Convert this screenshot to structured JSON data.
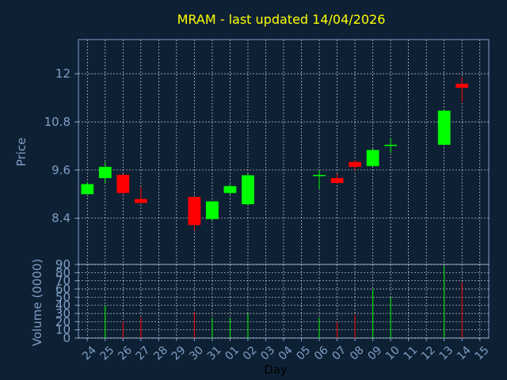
{
  "chart_data": {
    "type": "candlestick",
    "title": "MRAM - last updated 14/04/2026",
    "xlabel": "Day",
    "price_panel": {
      "ylabel": "Price",
      "yticks": [
        "8.4",
        "9.6",
        "10.8",
        "12"
      ],
      "ylim": [
        7.25,
        12.85
      ],
      "grid": true
    },
    "volume_panel": {
      "ylabel": "Volume (0000)",
      "yticks": [
        "0",
        "10",
        "20",
        "30",
        "40",
        "50",
        "60",
        "70",
        "80",
        "90"
      ],
      "ylim": [
        0,
        90
      ],
      "grid": true
    },
    "days": [
      "24",
      "25",
      "26",
      "27",
      "28",
      "29",
      "30",
      "31",
      "01",
      "02",
      "03",
      "04",
      "05",
      "06",
      "07",
      "08",
      "09",
      "10",
      "11",
      "12",
      "13",
      "14",
      "15"
    ],
    "candles": [
      {
        "day": "24",
        "open": 9.0,
        "high": 9.3,
        "low": 9.0,
        "close": 9.25,
        "volume": 0
      },
      {
        "day": "25",
        "open": 9.4,
        "high": 9.8,
        "low": 9.28,
        "close": 9.68,
        "volume": 40
      },
      {
        "day": "26",
        "open": 9.48,
        "high": 9.5,
        "low": 9.0,
        "close": 9.03,
        "volume": 20
      },
      {
        "day": "27",
        "open": 8.88,
        "high": 9.18,
        "low": 8.77,
        "close": 8.78,
        "volume": 25
      },
      {
        "day": "30",
        "open": 8.93,
        "high": 8.93,
        "low": 8.1,
        "close": 8.23,
        "volume": 32
      },
      {
        "day": "31",
        "open": 8.38,
        "high": 8.82,
        "low": 8.35,
        "close": 8.82,
        "volume": 25
      },
      {
        "day": "01",
        "open": 9.03,
        "high": 9.25,
        "low": 8.98,
        "close": 9.2,
        "volume": 25
      },
      {
        "day": "02",
        "open": 8.75,
        "high": 9.5,
        "low": 8.73,
        "close": 9.47,
        "volume": 30
      },
      {
        "day": "06",
        "open": 9.45,
        "high": 9.6,
        "low": 9.13,
        "close": 9.48,
        "volume": 25
      },
      {
        "day": "07",
        "open": 9.4,
        "high": 9.5,
        "low": 9.25,
        "close": 9.28,
        "volume": 20
      },
      {
        "day": "08",
        "open": 9.8,
        "high": 9.85,
        "low": 9.6,
        "close": 9.68,
        "volume": 28
      },
      {
        "day": "09",
        "open": 9.7,
        "high": 10.13,
        "low": 9.7,
        "close": 10.1,
        "volume": 60
      },
      {
        "day": "10",
        "open": 10.2,
        "high": 10.4,
        "low": 10.03,
        "close": 10.23,
        "volume": 50
      },
      {
        "day": "13",
        "open": 10.23,
        "high": 11.1,
        "low": 10.23,
        "close": 11.08,
        "volume": 88
      },
      {
        "day": "14",
        "open": 11.75,
        "high": 11.92,
        "low": 11.3,
        "close": 11.65,
        "volume": 68
      }
    ],
    "colors": {
      "background": "#0e2034",
      "up": "#00ff00",
      "down": "#ff0000",
      "grid": "#ffffff",
      "axis": "#7e9fc4",
      "title": "#ffff00"
    }
  }
}
